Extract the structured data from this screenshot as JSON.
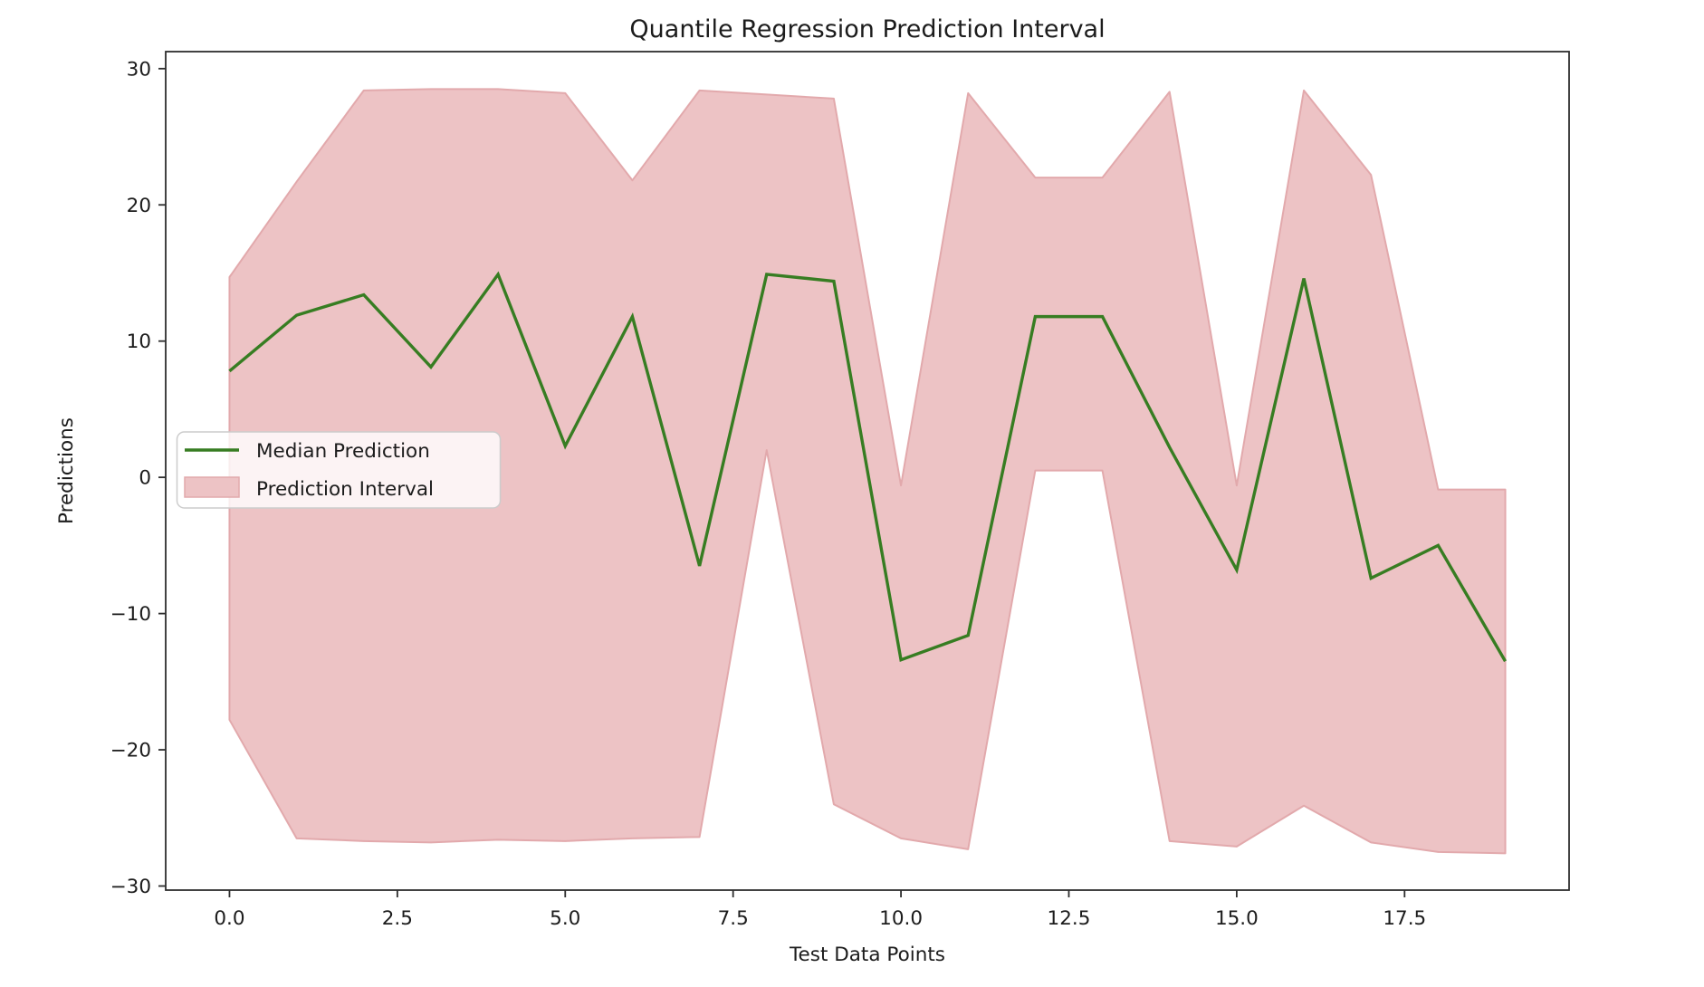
{
  "figure": {
    "title": "Quantile Regression Prediction Interval",
    "x_axis_label": "Test Data Points",
    "y_axis_label": "Predictions"
  },
  "axes": {
    "x_tick_labels": [
      "0.0",
      "2.5",
      "5.0",
      "7.5",
      "10.0",
      "12.5",
      "15.0",
      "17.5"
    ],
    "x_tick_values": [
      0,
      2.5,
      5,
      7.5,
      10,
      12.5,
      15,
      17.5
    ],
    "y_tick_labels": [
      "30",
      "20",
      "10",
      "0",
      "−10",
      "−20",
      "−30"
    ],
    "y_tick_values": [
      30,
      20,
      10,
      0,
      -10,
      -20,
      -30
    ]
  },
  "legend": {
    "items": [
      {
        "label": "Median Prediction",
        "handle": "line",
        "color": "#377d22"
      },
      {
        "label": "Prediction Interval",
        "handle": "patch",
        "color": "#edc3c5"
      }
    ]
  },
  "colors": {
    "median_line": "#377d22",
    "band_fill": "#edc3c5",
    "band_edge": "#e2a9ac",
    "axis": "#2e2e2e",
    "text": "#1c1c1c",
    "legend_border": "#cccccc",
    "background": "#ffffff"
  },
  "chart_data": {
    "type": "area",
    "title": "Quantile Regression Prediction Interval",
    "xlabel": "Test Data Points",
    "ylabel": "Predictions",
    "x": [
      0,
      1,
      2,
      3,
      4,
      5,
      6,
      7,
      8,
      9,
      10,
      11,
      12,
      13,
      14,
      15,
      16,
      17,
      18,
      19
    ],
    "series": [
      {
        "name": "Median Prediction",
        "type": "line",
        "values": [
          7.8,
          11.9,
          13.4,
          8.1,
          14.9,
          2.3,
          11.8,
          -6.5,
          14.9,
          14.4,
          -13.4,
          -11.6,
          11.8,
          11.8,
          2.2,
          -6.8,
          14.6,
          -7.4,
          -5.0,
          -13.5
        ]
      },
      {
        "name": "Prediction Interval",
        "type": "band",
        "upper": [
          14.7,
          21.7,
          28.4,
          28.5,
          28.5,
          28.2,
          21.8,
          28.4,
          28.1,
          27.8,
          -0.6,
          28.2,
          22.0,
          22.0,
          28.3,
          -0.6,
          28.4,
          22.2,
          -0.9,
          -0.9
        ],
        "lower": [
          -17.8,
          -26.5,
          -26.7,
          -26.8,
          -26.6,
          -26.7,
          -26.5,
          -26.4,
          2.0,
          -24.0,
          -26.5,
          -27.3,
          0.5,
          0.5,
          -26.7,
          -27.1,
          -24.1,
          -26.8,
          -27.5,
          -27.6
        ]
      }
    ],
    "xlim": [
      -0.95,
      19.95
    ],
    "ylim": [
      -30.3,
      31.25
    ],
    "x_ticks": [
      0,
      2.5,
      5,
      7.5,
      10,
      12.5,
      15,
      17.5
    ],
    "y_ticks": [
      30,
      20,
      10,
      0,
      -10,
      -20,
      -30
    ],
    "grid": false,
    "legend_position": "center left"
  }
}
